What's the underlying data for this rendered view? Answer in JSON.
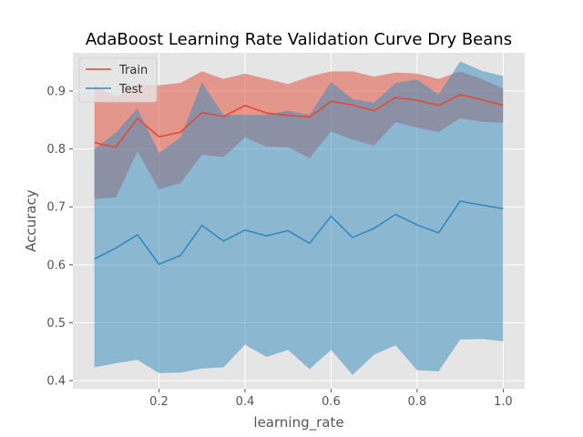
{
  "chart_data": {
    "type": "line",
    "title": "AdaBoost Learning Rate Validation Curve Dry Beans",
    "xlabel": "learning_rate",
    "ylabel": "Accuracy",
    "xlim": [
      0.0,
      1.05
    ],
    "ylim": [
      0.386,
      0.966
    ],
    "xticks": [
      0.2,
      0.4,
      0.6,
      0.8,
      1.0
    ],
    "xtick_labels": [
      "0.2",
      "0.4",
      "0.6",
      "0.8",
      "1.0"
    ],
    "yticks": [
      0.4,
      0.5,
      0.6,
      0.7,
      0.8,
      0.9
    ],
    "ytick_labels": [
      "0.4",
      "0.5",
      "0.6",
      "0.7",
      "0.8",
      "0.9"
    ],
    "grid": true,
    "legend_position": "top-left",
    "x": [
      0.05,
      0.1,
      0.15,
      0.2,
      0.25,
      0.3,
      0.35,
      0.4,
      0.45,
      0.5,
      0.55,
      0.6,
      0.65,
      0.7,
      0.75,
      0.8,
      0.85,
      0.9,
      0.95,
      1.0
    ],
    "series": [
      {
        "name": "Train",
        "color": "#e24a33",
        "values": [
          0.811,
          0.803,
          0.853,
          0.821,
          0.829,
          0.863,
          0.856,
          0.875,
          0.862,
          0.858,
          0.855,
          0.882,
          0.876,
          0.866,
          0.889,
          0.884,
          0.875,
          0.894,
          0.885,
          0.875
        ],
        "band_upper": [
          0.91,
          0.89,
          0.91,
          0.91,
          0.914,
          0.934,
          0.921,
          0.93,
          0.921,
          0.912,
          0.925,
          0.934,
          0.934,
          0.925,
          0.932,
          0.93,
          0.921,
          0.934,
          0.921,
          0.904
        ],
        "band_lower": [
          0.714,
          0.716,
          0.796,
          0.73,
          0.741,
          0.79,
          0.786,
          0.82,
          0.804,
          0.803,
          0.784,
          0.83,
          0.816,
          0.806,
          0.846,
          0.837,
          0.829,
          0.853,
          0.847,
          0.845
        ]
      },
      {
        "name": "Test",
        "color": "#348abd",
        "values": [
          0.61,
          0.629,
          0.652,
          0.601,
          0.616,
          0.668,
          0.641,
          0.66,
          0.65,
          0.659,
          0.637,
          0.684,
          0.647,
          0.663,
          0.687,
          0.669,
          0.655,
          0.71,
          0.703,
          0.697
        ],
        "band_upper": [
          0.8,
          0.828,
          0.87,
          0.793,
          0.82,
          0.915,
          0.859,
          0.859,
          0.859,
          0.866,
          0.859,
          0.916,
          0.886,
          0.88,
          0.914,
          0.92,
          0.894,
          0.951,
          0.935,
          0.926
        ],
        "band_lower": [
          0.423,
          0.43,
          0.436,
          0.413,
          0.414,
          0.421,
          0.423,
          0.462,
          0.441,
          0.453,
          0.42,
          0.453,
          0.41,
          0.445,
          0.461,
          0.418,
          0.416,
          0.471,
          0.472,
          0.468
        ]
      }
    ]
  }
}
